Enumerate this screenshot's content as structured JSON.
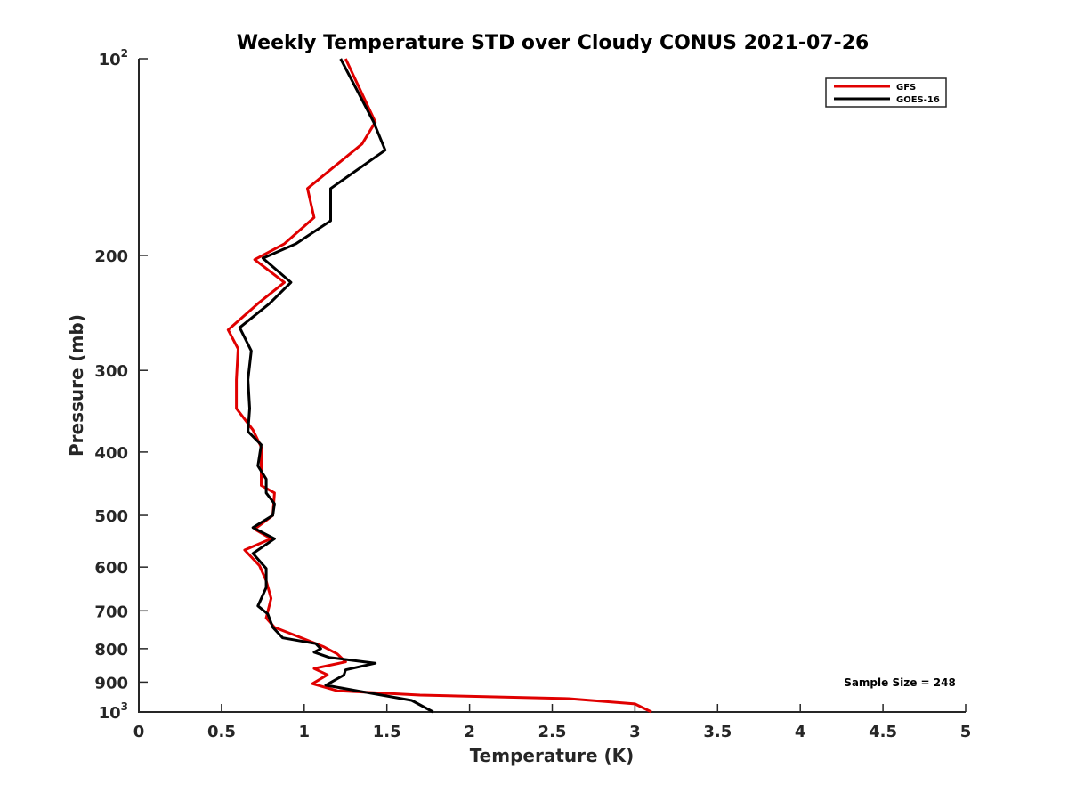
{
  "chart_data": {
    "type": "line",
    "title": "Weekly Temperature STD over Cloudy CONUS 2021-07-26",
    "xlabel": "Temperature (K)",
    "ylabel": "Pressure (mb)",
    "xlim": [
      0,
      5
    ],
    "ylim": [
      100,
      1000
    ],
    "y_scale": "log",
    "y_reversed": true,
    "grid": false,
    "legend_placement": "top-right",
    "x_ticks": [
      {
        "value": 0,
        "label": "0"
      },
      {
        "value": 0.5,
        "label": "0.5"
      },
      {
        "value": 1,
        "label": "1"
      },
      {
        "value": 1.5,
        "label": "1.5"
      },
      {
        "value": 2,
        "label": "2"
      },
      {
        "value": 2.5,
        "label": "2.5"
      },
      {
        "value": 3,
        "label": "3"
      },
      {
        "value": 3.5,
        "label": "3.5"
      },
      {
        "value": 4,
        "label": "4"
      },
      {
        "value": 4.5,
        "label": "4.5"
      },
      {
        "value": 5,
        "label": "5"
      }
    ],
    "y_ticks": [
      {
        "value": 100,
        "label": "10",
        "exp": "2"
      },
      {
        "value": 200,
        "label": "200"
      },
      {
        "value": 300,
        "label": "300"
      },
      {
        "value": 400,
        "label": "400"
      },
      {
        "value": 500,
        "label": "500"
      },
      {
        "value": 600,
        "label": "600"
      },
      {
        "value": 700,
        "label": "700"
      },
      {
        "value": 800,
        "label": "800"
      },
      {
        "value": 900,
        "label": "900"
      },
      {
        "value": 1000,
        "label": "10",
        "exp": "3"
      }
    ],
    "annotation": "Sample Size = 248",
    "series": [
      {
        "name": "GFS",
        "color": "#e00000",
        "points": [
          [
            1.25,
            100
          ],
          [
            1.43,
            125
          ],
          [
            1.35,
            135
          ],
          [
            1.02,
            158
          ],
          [
            1.06,
            175
          ],
          [
            0.88,
            192
          ],
          [
            0.7,
            203
          ],
          [
            0.88,
            220
          ],
          [
            0.72,
            237
          ],
          [
            0.54,
            260
          ],
          [
            0.6,
            278
          ],
          [
            0.59,
            310
          ],
          [
            0.59,
            343
          ],
          [
            0.69,
            370
          ],
          [
            0.74,
            393
          ],
          [
            0.74,
            422
          ],
          [
            0.74,
            450
          ],
          [
            0.82,
            462
          ],
          [
            0.81,
            500
          ],
          [
            0.7,
            525
          ],
          [
            0.8,
            543
          ],
          [
            0.64,
            565
          ],
          [
            0.73,
            597
          ],
          [
            0.77,
            630
          ],
          [
            0.8,
            670
          ],
          [
            0.77,
            718
          ],
          [
            0.82,
            742
          ],
          [
            0.96,
            766
          ],
          [
            1.05,
            782
          ],
          [
            1.12,
            795
          ],
          [
            1.2,
            815
          ],
          [
            1.25,
            838
          ],
          [
            1.06,
            858
          ],
          [
            1.14,
            877
          ],
          [
            1.05,
            905
          ],
          [
            1.2,
            928
          ],
          [
            1.7,
            942
          ],
          [
            2.6,
            954
          ],
          [
            3.0,
            972
          ],
          [
            3.1,
            1000
          ]
        ]
      },
      {
        "name": "GOES-16",
        "color": "#000000",
        "points": [
          [
            1.22,
            100
          ],
          [
            1.42,
            125
          ],
          [
            1.49,
            138
          ],
          [
            1.16,
            158
          ],
          [
            1.16,
            177
          ],
          [
            0.95,
            192
          ],
          [
            0.75,
            202
          ],
          [
            0.92,
            220
          ],
          [
            0.79,
            237
          ],
          [
            0.61,
            258
          ],
          [
            0.68,
            280
          ],
          [
            0.66,
            310
          ],
          [
            0.67,
            343
          ],
          [
            0.66,
            372
          ],
          [
            0.74,
            390
          ],
          [
            0.72,
            420
          ],
          [
            0.77,
            440
          ],
          [
            0.77,
            462
          ],
          [
            0.82,
            480
          ],
          [
            0.81,
            500
          ],
          [
            0.69,
            522
          ],
          [
            0.82,
            543
          ],
          [
            0.69,
            572
          ],
          [
            0.77,
            603
          ],
          [
            0.77,
            645
          ],
          [
            0.72,
            688
          ],
          [
            0.78,
            708
          ],
          [
            0.81,
            742
          ],
          [
            0.87,
            770
          ],
          [
            1.07,
            786
          ],
          [
            1.1,
            800
          ],
          [
            1.06,
            810
          ],
          [
            1.15,
            825
          ],
          [
            1.43,
            842
          ],
          [
            1.25,
            862
          ],
          [
            1.24,
            878
          ],
          [
            1.13,
            910
          ],
          [
            1.32,
            928
          ],
          [
            1.65,
            960
          ],
          [
            1.78,
            1000
          ]
        ]
      }
    ]
  }
}
